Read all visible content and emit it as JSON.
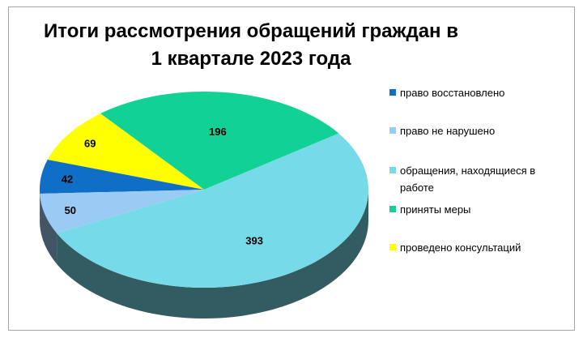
{
  "chart_data": {
    "type": "pie",
    "title": [
      "Итоги рассмотрения обращений граждан в",
      "1 квартале 2023 года"
    ],
    "legend_position": "right",
    "three_d": true,
    "start_angle_deg": 35,
    "slices": [
      {
        "label": "приняты меры",
        "value": 196,
        "color": "#12d195"
      },
      {
        "label": "проведено консультаций",
        "value": 69,
        "color": "#ffff00"
      },
      {
        "label": "право восстановлено",
        "value": 42,
        "color": "#0f6fc6"
      },
      {
        "label": "право не нарушено",
        "value": 50,
        "color": "#9acbf5"
      },
      {
        "label": "обращения, находящиеся в работе",
        "value": 393,
        "color": "#77dae8"
      }
    ],
    "legend": [
      {
        "label": "право восстановлено",
        "color": "#0f6fc6"
      },
      {
        "label": "право не нарушено",
        "color": "#9acbf5"
      },
      {
        "label": "обращения, находящиеся в работе",
        "color": "#77dae8"
      },
      {
        "label": "приняты меры",
        "color": "#12d195"
      },
      {
        "label": "проведено консультаций",
        "color": "#ffff00"
      }
    ]
  }
}
